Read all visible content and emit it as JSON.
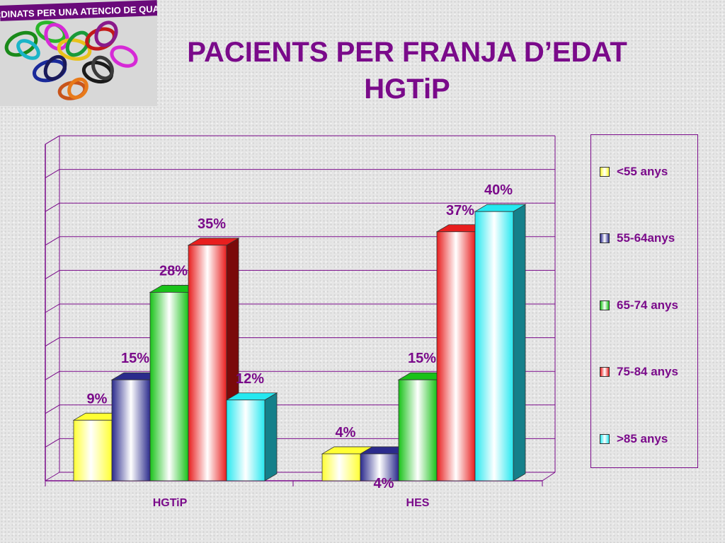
{
  "page": {
    "title_line1": "PACIENTS PER FRANJA D’EDAT",
    "title_line2": "HGTiP"
  },
  "logo": {
    "banner_text": "COORDINATS PER UNA ATENCIO DE QUALITAT",
    "icon": "tangled-knots-logo"
  },
  "chart_data": {
    "type": "bar",
    "categories": [
      "HGTiP",
      "HES"
    ],
    "series": [
      {
        "name": "<55 anys",
        "values": [
          9,
          4
        ],
        "labels": [
          "9%",
          "4%"
        ],
        "color": "#ffff33"
      },
      {
        "name": "55-64anys",
        "values": [
          15,
          4
        ],
        "labels": [
          "15%",
          "4%"
        ],
        "color": "#2b2b8c"
      },
      {
        "name": "65-74 anys",
        "values": [
          28,
          15
        ],
        "labels": [
          "28%",
          "15%"
        ],
        "color": "#19c219"
      },
      {
        "name": "75-84 anys",
        "values": [
          35,
          37
        ],
        "labels": [
          "35%",
          "37%"
        ],
        "color": "#e81e1e"
      },
      {
        "name": ">85 anys",
        "values": [
          12,
          40
        ],
        "labels": [
          "12%",
          "40%"
        ],
        "color": "#25e8f0"
      }
    ],
    "ylim": [
      0,
      50
    ],
    "grid": true,
    "legend_position": "right",
    "three_d": true
  }
}
